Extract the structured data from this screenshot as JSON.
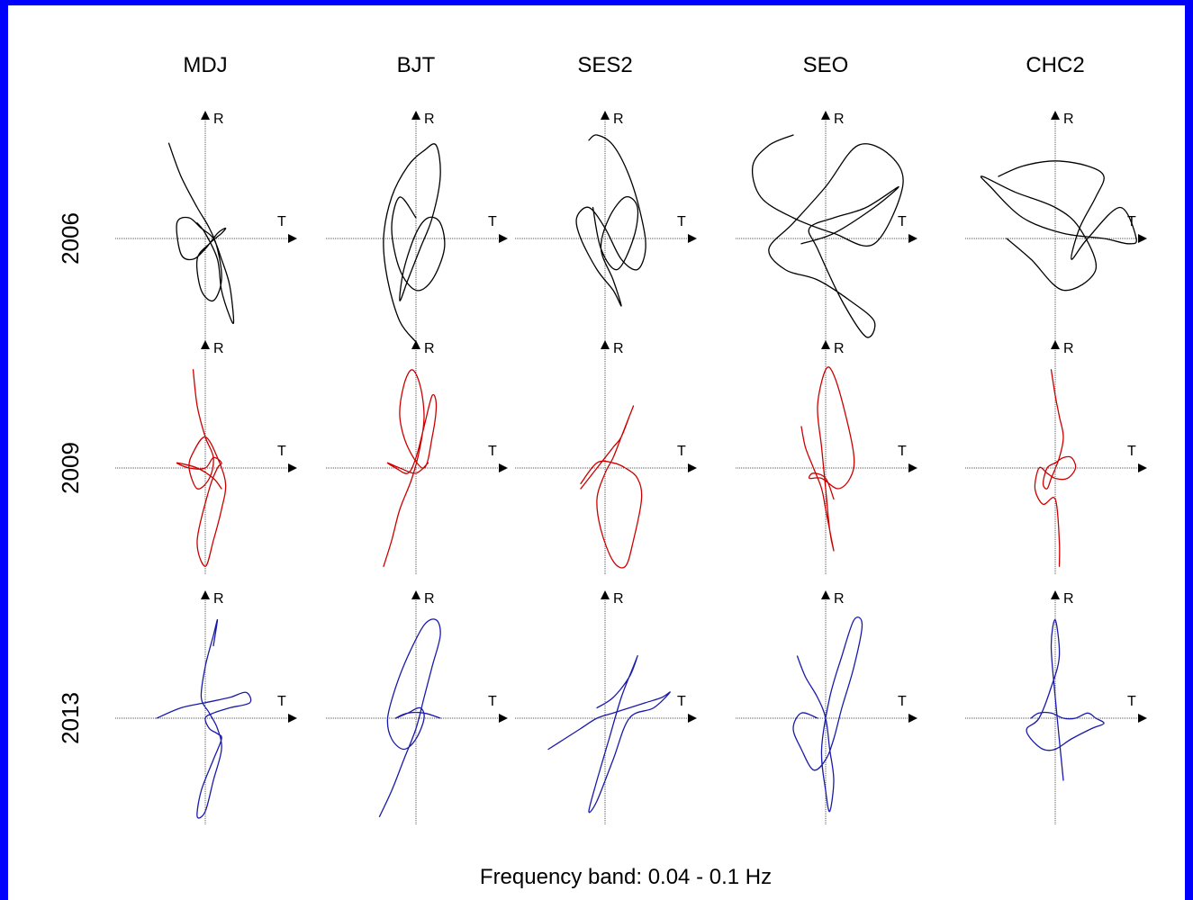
{
  "colors": {
    "frame": "#0000ff",
    "background": "#ffffff"
  },
  "chart_data": {
    "type": "scatter",
    "description_of_layout": "",
    "stations": [
      "MDJ",
      "BJT",
      "SES2",
      "SEO",
      "CHC2"
    ],
    "years": [
      "2006",
      "2009",
      "2013"
    ],
    "year_colors": {
      "2006": "#000000",
      "2009": "#cc0000",
      "2013": "#1a1aaa"
    },
    "axis_labels": {
      "x": "T",
      "y": "R"
    },
    "caption": "Frequency band: 0.04 - 0.1 Hz",
    "grid": false,
    "panels": [
      {
        "year": "2006",
        "station": "MDJ",
        "x": [
          -0.45,
          -0.3,
          -0.1,
          0.05,
          0.15,
          0.2,
          0.1,
          -0.05,
          -0.1,
          0.05,
          0.2,
          0.25,
          0.15,
          0.0,
          -0.15,
          -0.3,
          -0.35,
          -0.2,
          -0.05,
          0.1,
          0.2,
          0.3,
          0.35,
          0.3,
          0.2,
          0.15,
          0.0,
          -0.1
        ],
        "y": [
          0.92,
          0.6,
          0.3,
          0.1,
          -0.1,
          -0.4,
          -0.6,
          -0.5,
          -0.2,
          -0.05,
          0.05,
          0.1,
          0.05,
          -0.1,
          -0.2,
          -0.15,
          0.15,
          0.2,
          0.1,
          0.0,
          -0.2,
          -0.45,
          -0.8,
          -0.75,
          -0.5,
          -0.2,
          0.05,
          0.15
        ]
      },
      {
        "year": "2006",
        "station": "BJT",
        "x": [
          0.0,
          -0.2,
          -0.35,
          -0.4,
          -0.3,
          -0.1,
          0.1,
          0.25,
          0.3,
          0.2,
          0.05,
          -0.1,
          -0.2,
          -0.15,
          0.0,
          0.15,
          0.3,
          0.35,
          0.2,
          0.0,
          -0.2,
          -0.3,
          -0.2,
          0.0
        ],
        "y": [
          -1.0,
          -0.8,
          -0.4,
          0.0,
          0.4,
          0.7,
          0.85,
          0.9,
          0.6,
          0.2,
          -0.1,
          -0.4,
          -0.6,
          -0.3,
          0.05,
          0.2,
          0.15,
          -0.1,
          -0.4,
          -0.5,
          -0.3,
          0.1,
          0.4,
          0.2
        ]
      },
      {
        "year": "2006",
        "station": "SES2",
        "x": [
          -0.2,
          -0.1,
          0.1,
          0.3,
          0.45,
          0.5,
          0.4,
          0.2,
          0.0,
          -0.2,
          -0.35,
          -0.3,
          -0.1,
          0.1,
          0.2,
          0.1,
          -0.05,
          0.05,
          0.25,
          0.4,
          0.35,
          0.15,
          -0.05,
          -0.15
        ],
        "y": [
          0.95,
          1.0,
          0.9,
          0.6,
          0.2,
          -0.1,
          -0.3,
          -0.2,
          0.1,
          0.3,
          0.2,
          0.0,
          -0.3,
          -0.5,
          -0.65,
          -0.4,
          -0.1,
          0.2,
          0.4,
          0.3,
          0.0,
          -0.3,
          -0.1,
          0.3
        ]
      },
      {
        "year": "2006",
        "station": "SEO",
        "x": [
          -0.4,
          -0.7,
          -0.9,
          -0.8,
          -0.4,
          0.1,
          0.6,
          0.95,
          0.8,
          0.4,
          0.0,
          -0.4,
          -0.7,
          -0.5,
          -0.1,
          0.3,
          0.6,
          0.5,
          0.2,
          -0.1,
          -0.2,
          0.1,
          0.5,
          0.9,
          0.6,
          0.1,
          -0.3
        ],
        "y": [
          1.0,
          0.9,
          0.7,
          0.4,
          0.2,
          0.05,
          -0.05,
          0.5,
          0.8,
          0.9,
          0.5,
          0.15,
          -0.1,
          -0.3,
          -0.4,
          -0.6,
          -0.8,
          -0.95,
          -0.6,
          -0.1,
          0.1,
          0.2,
          0.3,
          0.5,
          0.3,
          0.05,
          -0.05
        ]
      },
      {
        "year": "2006",
        "station": "CHC2",
        "x": [
          -0.7,
          -0.4,
          0.0,
          0.4,
          0.6,
          0.5,
          0.3,
          0.2,
          0.4,
          0.8,
          1.0,
          0.9,
          0.6,
          0.1,
          -0.4,
          -0.8,
          -0.9,
          -0.5,
          0.0,
          0.3,
          0.5,
          0.1,
          -0.3,
          -0.6
        ],
        "y": [
          0.6,
          0.7,
          0.75,
          0.7,
          0.6,
          0.4,
          0.1,
          -0.2,
          0.0,
          0.3,
          0.0,
          -0.05,
          0.0,
          0.05,
          0.2,
          0.5,
          0.6,
          0.45,
          0.3,
          0.1,
          -0.3,
          -0.5,
          -0.2,
          0.0
        ]
      },
      {
        "year": "2009",
        "station": "MDJ",
        "x": [
          -0.15,
          -0.1,
          0.0,
          0.1,
          0.05,
          -0.1,
          -0.2,
          -0.15,
          0.0,
          0.15,
          0.25,
          0.2,
          0.1,
          0.0,
          -0.1,
          0.05,
          0.15,
          0.2,
          0.1,
          0.0,
          -0.2,
          -0.35,
          -0.1,
          0.1,
          0.2
        ],
        "y": [
          0.95,
          0.6,
          0.3,
          0.1,
          -0.1,
          -0.2,
          0.0,
          0.15,
          0.3,
          0.1,
          -0.15,
          -0.4,
          -0.7,
          -0.95,
          -0.7,
          -0.2,
          0.0,
          0.05,
          0.1,
          0.0,
          0.0,
          0.05,
          0.0,
          -0.1,
          -0.2
        ]
      },
      {
        "year": "2009",
        "station": "BJT",
        "x": [
          -0.4,
          -0.3,
          -0.2,
          -0.05,
          0.05,
          0.1,
          0.05,
          -0.05,
          -0.15,
          -0.2,
          -0.1,
          0.1,
          0.2,
          0.25,
          0.2,
          0.1,
          0.0,
          -0.1,
          -0.25,
          -0.35,
          -0.2,
          0.0,
          0.15
        ],
        "y": [
          -0.95,
          -0.7,
          -0.4,
          -0.1,
          0.2,
          0.5,
          0.8,
          0.95,
          0.8,
          0.5,
          0.2,
          0.0,
          0.3,
          0.6,
          0.7,
          0.4,
          0.1,
          -0.05,
          0.0,
          0.05,
          0.0,
          -0.05,
          0.05
        ]
      },
      {
        "year": "2009",
        "station": "SES2",
        "x": [
          -0.3,
          -0.2,
          -0.05,
          0.1,
          0.2,
          0.3,
          0.35,
          0.3,
          0.2,
          0.1,
          0.0,
          -0.1,
          -0.05,
          0.1,
          0.25,
          0.35,
          0.45,
          0.4,
          0.25,
          0.1,
          -0.1,
          -0.3
        ],
        "y": [
          -0.2,
          -0.1,
          0.05,
          0.2,
          0.3,
          0.5,
          0.6,
          0.5,
          0.3,
          0.1,
          -0.05,
          -0.3,
          -0.6,
          -0.9,
          -0.95,
          -0.7,
          -0.3,
          -0.1,
          0.0,
          0.05,
          0.05,
          -0.15
        ]
      },
      {
        "year": "2009",
        "station": "SEO",
        "x": [
          -0.3,
          -0.25,
          -0.15,
          -0.05,
          0.0,
          0.05,
          0.1,
          0.05,
          0.0,
          -0.05,
          -0.1,
          0.0,
          0.1,
          0.25,
          0.35,
          0.3,
          0.15,
          -0.05,
          -0.2,
          -0.15,
          0.0,
          0.1
        ],
        "y": [
          0.4,
          0.2,
          0.0,
          -0.2,
          -0.4,
          -0.6,
          -0.8,
          -0.6,
          -0.2,
          0.2,
          0.6,
          0.95,
          0.9,
          0.5,
          0.1,
          -0.1,
          -0.2,
          -0.1,
          -0.1,
          -0.05,
          -0.1,
          -0.3
        ]
      },
      {
        "year": "2009",
        "station": "CHC2",
        "x": [
          -0.05,
          0.0,
          0.05,
          0.1,
          0.05,
          -0.05,
          -0.1,
          -0.15,
          -0.1,
          0.0,
          0.1,
          0.2,
          0.25,
          0.15,
          0.0,
          -0.1,
          -0.2,
          -0.25,
          -0.15,
          0.0,
          0.05,
          0.05
        ],
        "y": [
          0.95,
          0.7,
          0.5,
          0.3,
          0.1,
          -0.1,
          -0.2,
          -0.15,
          0.0,
          0.05,
          0.1,
          0.1,
          0.0,
          -0.1,
          -0.1,
          -0.05,
          0.0,
          -0.2,
          -0.35,
          -0.3,
          -0.7,
          -0.95
        ]
      },
      {
        "year": "2013",
        "station": "MDJ",
        "x": [
          -0.6,
          -0.3,
          0.0,
          0.3,
          0.5,
          0.55,
          0.3,
          0.1,
          0.0,
          0.05,
          0.15,
          0.2,
          0.1,
          -0.05,
          -0.1,
          0.0,
          0.1,
          0.2,
          0.15,
          0.05,
          -0.05,
          0.0,
          0.1,
          0.15,
          0.1
        ],
        "y": [
          0.0,
          0.1,
          0.15,
          0.2,
          0.25,
          0.15,
          0.1,
          0.05,
          0.0,
          -0.1,
          -0.15,
          -0.2,
          -0.4,
          -0.7,
          -0.95,
          -0.9,
          -0.6,
          -0.3,
          -0.1,
          0.05,
          0.2,
          0.5,
          0.8,
          0.95,
          0.7
        ]
      },
      {
        "year": "2013",
        "station": "BJT",
        "x": [
          -0.45,
          -0.3,
          -0.15,
          0.0,
          0.1,
          0.2,
          0.3,
          0.25,
          0.1,
          -0.1,
          -0.25,
          -0.35,
          -0.3,
          -0.15,
          0.0,
          0.1,
          0.05,
          -0.1,
          -0.25,
          -0.1,
          0.1,
          0.3
        ],
        "y": [
          -0.95,
          -0.7,
          -0.4,
          -0.1,
          0.2,
          0.5,
          0.8,
          0.95,
          0.9,
          0.6,
          0.3,
          0.0,
          -0.2,
          -0.3,
          -0.2,
          0.0,
          0.1,
          0.05,
          0.0,
          0.05,
          0.05,
          0.0
        ]
      },
      {
        "year": "2013",
        "station": "SES2",
        "x": [
          -0.7,
          -0.5,
          -0.3,
          -0.1,
          0.1,
          0.3,
          0.5,
          0.7,
          0.8,
          0.6,
          0.3,
          0.1,
          -0.1,
          -0.2,
          -0.1,
          0.05,
          0.2,
          0.35,
          0.4,
          0.3,
          0.1,
          -0.1
        ],
        "y": [
          -0.3,
          -0.2,
          -0.1,
          0.0,
          0.05,
          0.1,
          0.15,
          0.2,
          0.25,
          0.1,
          0.0,
          -0.4,
          -0.8,
          -0.9,
          -0.6,
          -0.2,
          0.2,
          0.5,
          0.6,
          0.4,
          0.2,
          0.1
        ]
      },
      {
        "year": "2013",
        "station": "SEO",
        "x": [
          -0.35,
          -0.25,
          -0.1,
          0.0,
          0.05,
          0.1,
          0.05,
          0.0,
          -0.05,
          0.05,
          0.2,
          0.35,
          0.45,
          0.35,
          0.2,
          0.1,
          0.0,
          -0.15,
          -0.3,
          -0.4,
          -0.3,
          -0.1
        ],
        "y": [
          0.6,
          0.4,
          0.2,
          0.0,
          -0.3,
          -0.6,
          -0.9,
          -0.7,
          -0.3,
          0.2,
          0.6,
          0.95,
          0.9,
          0.5,
          0.1,
          -0.2,
          -0.4,
          -0.5,
          -0.3,
          -0.1,
          0.05,
          0.0
        ]
      },
      {
        "year": "2013",
        "station": "CHC2",
        "x": [
          -0.3,
          -0.2,
          -0.05,
          0.1,
          0.25,
          0.4,
          0.5,
          0.6,
          0.45,
          0.2,
          0.0,
          -0.15,
          -0.3,
          -0.35,
          -0.2,
          -0.05,
          0.05,
          0.0,
          -0.05,
          0.0,
          0.1
        ],
        "y": [
          0.0,
          0.05,
          0.05,
          0.0,
          0.0,
          0.05,
          0.0,
          -0.05,
          -0.1,
          -0.2,
          -0.3,
          -0.3,
          -0.2,
          -0.1,
          0.0,
          0.3,
          0.6,
          0.95,
          0.7,
          0.2,
          -0.6
        ]
      }
    ]
  }
}
